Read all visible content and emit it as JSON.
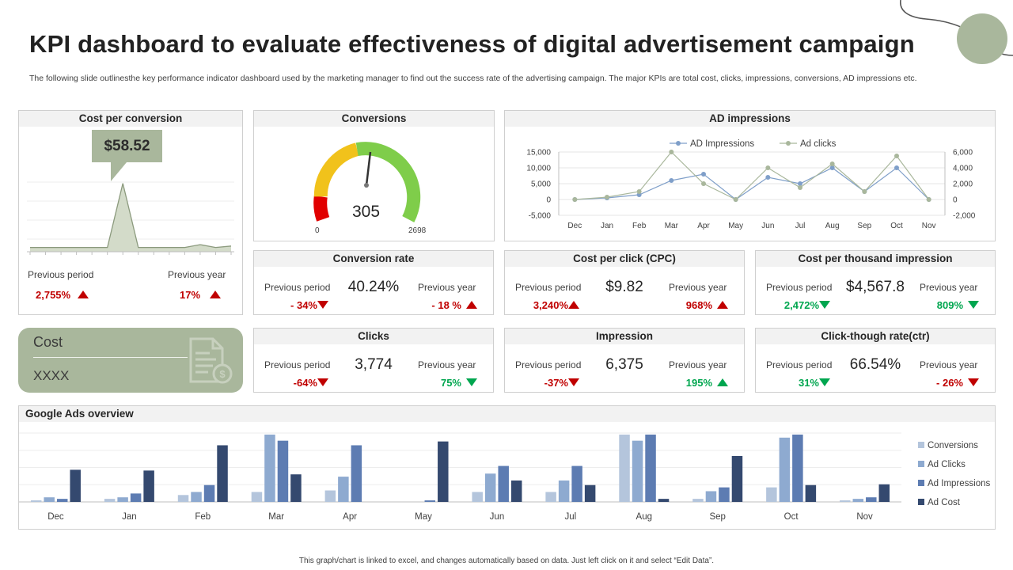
{
  "title": "KPI dashboard to evaluate effectiveness of digital advertisement campaign",
  "subtitle": "The following slide outlinesthe key performance indicator dashboard used by the marketing manager to find out the success rate of the advertising campaign. The major KPIs are total cost, clicks, impressions, conversions, AD impressions etc.",
  "colors": {
    "sage": "#a9b79c",
    "red": "#c00000",
    "green": "#00a64f",
    "navy": "#44546a"
  },
  "cost_per_conversion": {
    "title": "Cost per conversion",
    "value": "$58.52",
    "prev_period_label": "Previous period",
    "prev_period_value": "2,755%",
    "prev_year_label": "Previous year",
    "prev_year_value": "17%",
    "trend": [
      1.5,
      1.5,
      1.5,
      1.5,
      1.5,
      1.5,
      24,
      1.5,
      1.5,
      1.5,
      1.5,
      2.5,
      1.5,
      2
    ]
  },
  "conversions": {
    "title": "Conversions",
    "value": "305",
    "min": "0",
    "max": "2698"
  },
  "kpis": [
    {
      "title": "Conversion rate",
      "prev_period_label": "Previous period",
      "value": "40.24%",
      "prev_year_label": "Previous year",
      "prev_period_change": "- 34%",
      "prev_period_dir": "down-red",
      "prev_year_change": "- 18 %",
      "prev_year_dir": "up-red"
    },
    {
      "title": "Cost per click (CPC)",
      "prev_period_label": "Previous period",
      "value": "$9.82",
      "prev_year_label": "Previous year",
      "prev_period_change": "3,240%",
      "prev_period_dir": "up-red",
      "prev_year_change": "968%",
      "prev_year_dir": "up-red"
    },
    {
      "title": "Cost per thousand impression",
      "prev_period_label": "Previous period",
      "value": "$4,567.8",
      "prev_year_label": "Previous year",
      "prev_period_change": "2,472%",
      "prev_period_dir": "down-green",
      "prev_year_change": "809%",
      "prev_year_dir": "down-green"
    },
    {
      "title": "Clicks",
      "prev_period_label": "Previous period",
      "value": "3,774",
      "prev_year_label": "Previous year",
      "prev_period_change": "-64%",
      "prev_period_dir": "down-red",
      "prev_year_change": "75%",
      "prev_year_dir": "down-green"
    },
    {
      "title": "Impression",
      "prev_period_label": "Previous period",
      "value": "6,375",
      "prev_year_label": "Previous year",
      "prev_period_change": "-37%",
      "prev_period_dir": "down-red",
      "prev_year_change": "195%",
      "prev_year_dir": "up-green"
    },
    {
      "title": "Click-though rate(ctr)",
      "prev_period_label": "Previous period",
      "value": "66.54%",
      "prev_year_label": "Previous year",
      "prev_period_change": "31%",
      "prev_period_dir": "down-green",
      "prev_year_change": "- 26%",
      "prev_year_dir": "down-red"
    }
  ],
  "cost_card": {
    "title": "Cost",
    "value": "XXXX",
    "icon": "invoice-dollar-icon"
  },
  "footer": "This graph/chart is linked to excel, and changes automatically based on data. Just left click on it and select “Edit Data”.",
  "chart_data": [
    {
      "type": "line",
      "title": "AD impressions",
      "categories": [
        "Dec",
        "Jan",
        "Feb",
        "Mar",
        "Apr",
        "May",
        "Jun",
        "Jul",
        "Aug",
        "Sep",
        "Oct",
        "Nov"
      ],
      "series": [
        {
          "name": "AD Impressions",
          "axis": "left",
          "color": "#7f9fc9",
          "values": [
            0,
            500,
            1500,
            6000,
            8000,
            0,
            7000,
            5000,
            10000,
            2500,
            10000,
            0
          ]
        },
        {
          "name": "Ad clicks",
          "axis": "right",
          "color": "#a9b79c",
          "values": [
            0,
            300,
            1000,
            6000,
            2000,
            0,
            4000,
            1500,
            4500,
            1000,
            5500,
            0
          ]
        }
      ],
      "y_left": {
        "min": -5000,
        "max": 15000,
        "ticks": [
          "15,000",
          "10,000",
          "5,000",
          "0",
          "-5,000"
        ]
      },
      "y_right": {
        "min": -2000,
        "max": 6000,
        "ticks": [
          "6,000",
          "4,000",
          "2,000",
          "0",
          "-2,000"
        ]
      },
      "legend": "top"
    },
    {
      "type": "bar",
      "title": "Google Ads overview",
      "categories": [
        "Dec",
        "Jan",
        "Feb",
        "Mar",
        "Apr",
        "May",
        "Jun",
        "Jul",
        "Aug",
        "Sep",
        "Oct",
        "Nov"
      ],
      "series": [
        {
          "name": "Conversions",
          "color": "#b4c5dc",
          "values": [
            2,
            4,
            9,
            13,
            15,
            0,
            13,
            13,
            88,
            4,
            19,
            2
          ]
        },
        {
          "name": "Ad Clicks",
          "color": "#8eaad0",
          "values": [
            6,
            6,
            13,
            88,
            33,
            0,
            37,
            28,
            80,
            14,
            84,
            4
          ]
        },
        {
          "name": "Ad Impressions",
          "color": "#5d7cb2",
          "values": [
            4,
            11,
            22,
            80,
            74,
            2,
            47,
            47,
            88,
            19,
            88,
            6
          ]
        },
        {
          "name": "Ad Cost",
          "color": "#34496f",
          "values": [
            42,
            41,
            74,
            36,
            0,
            79,
            28,
            22,
            4,
            60,
            22,
            23
          ]
        }
      ],
      "ylim": [
        0,
        90
      ],
      "legend": "right"
    }
  ]
}
